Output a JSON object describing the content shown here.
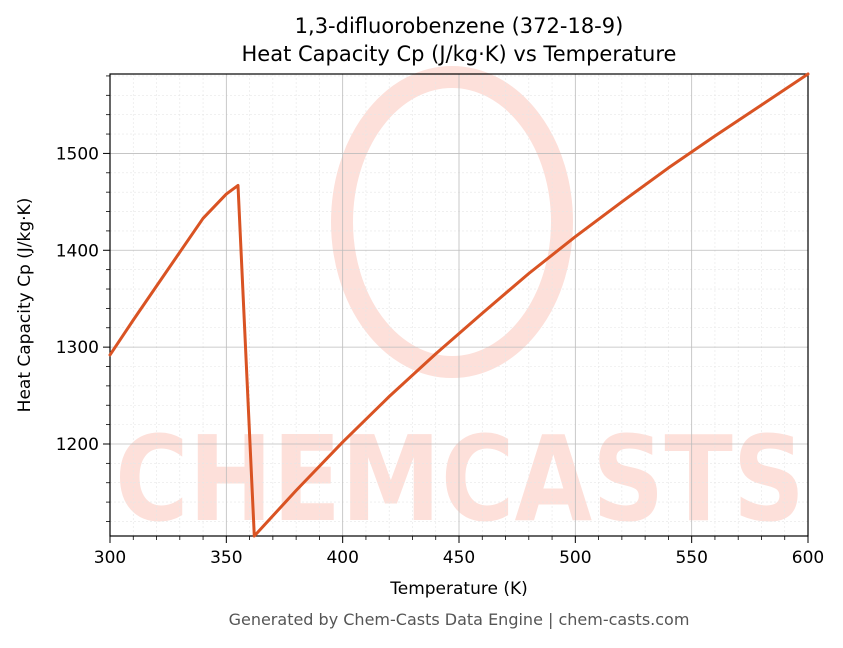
{
  "chart_data": {
    "type": "line",
    "title_line1": "1,3-difluorobenzene (372-18-9)",
    "title_line2": "Heat Capacity Cp (J/kg·K) vs Temperature",
    "xlabel": "Temperature (K)",
    "ylabel": "Heat Capacity Cp (J/kg·K)",
    "xlim": [
      300,
      600
    ],
    "ylim": [
      1105,
      1582
    ],
    "xticks": [
      300,
      350,
      400,
      450,
      500,
      550,
      600
    ],
    "yticks": [
      1200,
      1300,
      1400,
      1500
    ],
    "grid": true,
    "line_color": "#d95323",
    "series": [
      {
        "points": [
          [
            300,
            1292
          ],
          [
            310,
            1328
          ],
          [
            320,
            1363
          ],
          [
            330,
            1398
          ],
          [
            340,
            1433
          ],
          [
            350,
            1458
          ],
          [
            355,
            1467
          ],
          [
            362,
            1105
          ],
          [
            380,
            1152
          ],
          [
            400,
            1202
          ],
          [
            420,
            1249
          ],
          [
            440,
            1293
          ],
          [
            460,
            1335
          ],
          [
            480,
            1376
          ],
          [
            500,
            1414
          ],
          [
            520,
            1450
          ],
          [
            540,
            1485
          ],
          [
            560,
            1518
          ],
          [
            580,
            1550
          ],
          [
            600,
            1582
          ]
        ]
      }
    ]
  },
  "watermark": {
    "text": "CHEMCASTS",
    "color": "#fde0da"
  },
  "footer": "Generated by Chem-Casts Data Engine | chem-casts.com"
}
